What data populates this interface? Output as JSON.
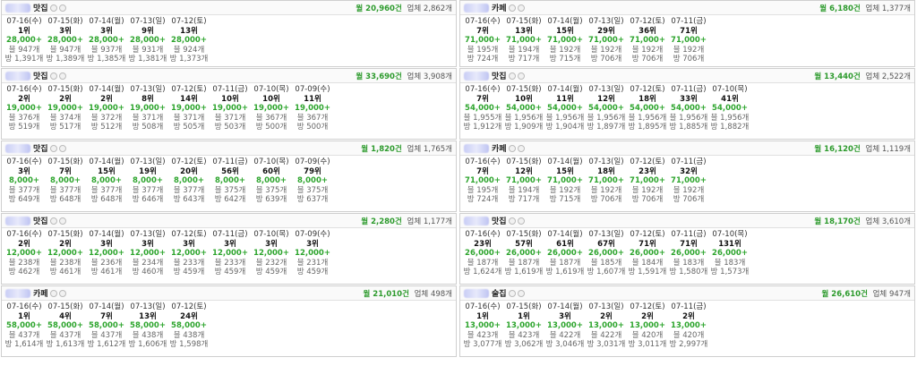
{
  "labels": {
    "monthly_suffix": "건",
    "industry_prefix": "업체",
    "count_suffix": "개"
  },
  "colors": {
    "traffic": "#2ea52e",
    "border": "#cfcfcf",
    "blur": "#c9cdf5"
  },
  "icons": [
    "blurred-store-name",
    "info-badge-icon"
  ],
  "left_cards": [
    {
      "category": "맛집",
      "monthly": "월 20,960건",
      "industry": "업체 2,862개",
      "days": [
        {
          "date": "07-16(수)",
          "rank": "1위",
          "traffic": "28,000+",
          "posts": "블 947개",
          "visits": "방 1,391개"
        },
        {
          "date": "07-15(화)",
          "rank": "3위",
          "traffic": "28,000+",
          "posts": "블 947개",
          "visits": "방 1,389개"
        },
        {
          "date": "07-14(월)",
          "rank": "3위",
          "traffic": "28,000+",
          "posts": "블 937개",
          "visits": "방 1,385개"
        },
        {
          "date": "07-13(일)",
          "rank": "9위",
          "traffic": "28,000+",
          "posts": "블 931개",
          "visits": "방 1,381개"
        },
        {
          "date": "07-12(토)",
          "rank": "13위",
          "traffic": "28,000+",
          "posts": "블 924개",
          "visits": "방 1,373개"
        }
      ]
    },
    {
      "category": "맛집",
      "monthly": "월 33,690건",
      "industry": "업체 3,908개",
      "days": [
        {
          "date": "07-16(수)",
          "rank": "2위",
          "traffic": "19,000+",
          "posts": "블 376개",
          "visits": "방 519개"
        },
        {
          "date": "07-15(화)",
          "rank": "2위",
          "traffic": "19,000+",
          "posts": "블 374개",
          "visits": "방 517개"
        },
        {
          "date": "07-14(월)",
          "rank": "2위",
          "traffic": "19,000+",
          "posts": "블 372개",
          "visits": "방 512개"
        },
        {
          "date": "07-13(일)",
          "rank": "8위",
          "traffic": "19,000+",
          "posts": "블 371개",
          "visits": "방 508개"
        },
        {
          "date": "07-12(토)",
          "rank": "14위",
          "traffic": "19,000+",
          "posts": "블 371개",
          "visits": "방 505개"
        },
        {
          "date": "07-11(금)",
          "rank": "10위",
          "traffic": "19,000+",
          "posts": "블 371개",
          "visits": "방 503개"
        },
        {
          "date": "07-10(목)",
          "rank": "10위",
          "traffic": "19,000+",
          "posts": "블 367개",
          "visits": "방 500개"
        },
        {
          "date": "07-09(수)",
          "rank": "11위",
          "traffic": "19,000+",
          "posts": "블 367개",
          "visits": "방 500개"
        }
      ]
    },
    {
      "category": "맛집",
      "monthly": "월 1,820건",
      "industry": "업체 1,765개",
      "days": [
        {
          "date": "07-16(수)",
          "rank": "3위",
          "traffic": "8,000+",
          "posts": "블 377개",
          "visits": "방 649개"
        },
        {
          "date": "07-15(화)",
          "rank": "7위",
          "traffic": "8,000+",
          "posts": "블 377개",
          "visits": "방 648개"
        },
        {
          "date": "07-14(월)",
          "rank": "15위",
          "traffic": "8,000+",
          "posts": "블 377개",
          "visits": "방 648개"
        },
        {
          "date": "07-13(일)",
          "rank": "19위",
          "traffic": "8,000+",
          "posts": "블 377개",
          "visits": "방 646개"
        },
        {
          "date": "07-12(토)",
          "rank": "20위",
          "traffic": "8,000+",
          "posts": "블 377개",
          "visits": "방 643개"
        },
        {
          "date": "07-11(금)",
          "rank": "56위",
          "traffic": "8,000+",
          "posts": "블 375개",
          "visits": "방 642개"
        },
        {
          "date": "07-10(목)",
          "rank": "60위",
          "traffic": "8,000+",
          "posts": "블 375개",
          "visits": "방 639개"
        },
        {
          "date": "07-09(수)",
          "rank": "79위",
          "traffic": "8,000+",
          "posts": "블 375개",
          "visits": "방 637개"
        }
      ]
    },
    {
      "category": "맛집",
      "monthly": "월 2,280건",
      "industry": "업체 1,177개",
      "days": [
        {
          "date": "07-16(수)",
          "rank": "2위",
          "traffic": "12,000+",
          "posts": "블 238개",
          "visits": "방 462개"
        },
        {
          "date": "07-15(화)",
          "rank": "2위",
          "traffic": "12,000+",
          "posts": "블 238개",
          "visits": "방 461개"
        },
        {
          "date": "07-14(월)",
          "rank": "3위",
          "traffic": "12,000+",
          "posts": "블 236개",
          "visits": "방 461개"
        },
        {
          "date": "07-13(일)",
          "rank": "3위",
          "traffic": "12,000+",
          "posts": "블 234개",
          "visits": "방 460개"
        },
        {
          "date": "07-12(토)",
          "rank": "3위",
          "traffic": "12,000+",
          "posts": "블 233개",
          "visits": "방 459개"
        },
        {
          "date": "07-11(금)",
          "rank": "3위",
          "traffic": "12,000+",
          "posts": "블 233개",
          "visits": "방 459개"
        },
        {
          "date": "07-10(목)",
          "rank": "3위",
          "traffic": "12,000+",
          "posts": "블 232개",
          "visits": "방 459개"
        },
        {
          "date": "07-09(수)",
          "rank": "3위",
          "traffic": "12,000+",
          "posts": "블 231개",
          "visits": "방 459개"
        }
      ]
    },
    {
      "category": "카페",
      "monthly": "월 21,010건",
      "industry": "업체 498개",
      "days": [
        {
          "date": "07-16(수)",
          "rank": "1위",
          "traffic": "58,000+",
          "posts": "블 437개",
          "visits": "방 1,614개"
        },
        {
          "date": "07-15(화)",
          "rank": "4위",
          "traffic": "58,000+",
          "posts": "블 437개",
          "visits": "방 1,613개"
        },
        {
          "date": "07-14(월)",
          "rank": "7위",
          "traffic": "58,000+",
          "posts": "블 437개",
          "visits": "방 1,612개"
        },
        {
          "date": "07-13(일)",
          "rank": "13위",
          "traffic": "58,000+",
          "posts": "블 438개",
          "visits": "방 1,606개"
        },
        {
          "date": "07-12(토)",
          "rank": "24위",
          "traffic": "58,000+",
          "posts": "블 438개",
          "visits": "방 1,598개"
        }
      ]
    }
  ],
  "right_cards": [
    {
      "category": "카페",
      "monthly": "월 6,180건",
      "industry": "업체 1,377개",
      "days": [
        {
          "date": "07-16(수)",
          "rank": "7위",
          "traffic": "71,000+",
          "posts": "블 195개",
          "visits": "방 724개"
        },
        {
          "date": "07-15(화)",
          "rank": "13위",
          "traffic": "71,000+",
          "posts": "블 194개",
          "visits": "방 717개"
        },
        {
          "date": "07-14(월)",
          "rank": "15위",
          "traffic": "71,000+",
          "posts": "블 192개",
          "visits": "방 715개"
        },
        {
          "date": "07-13(일)",
          "rank": "29위",
          "traffic": "71,000+",
          "posts": "블 192개",
          "visits": "방 706개"
        },
        {
          "date": "07-12(토)",
          "rank": "36위",
          "traffic": "71,000+",
          "posts": "블 192개",
          "visits": "방 706개"
        },
        {
          "date": "07-11(금)",
          "rank": "71위",
          "traffic": "71,000+",
          "posts": "블 192개",
          "visits": "방 706개"
        }
      ]
    },
    {
      "category": "맛집",
      "monthly": "월 13,440건",
      "industry": "업체 2,522개",
      "days": [
        {
          "date": "07-16(수)",
          "rank": "7위",
          "traffic": "54,000+",
          "posts": "블 1,955개",
          "visits": "방 1,912개"
        },
        {
          "date": "07-15(화)",
          "rank": "10위",
          "traffic": "54,000+",
          "posts": "블 1,956개",
          "visits": "방 1,909개"
        },
        {
          "date": "07-14(월)",
          "rank": "11위",
          "traffic": "54,000+",
          "posts": "블 1,956개",
          "visits": "방 1,904개"
        },
        {
          "date": "07-13(일)",
          "rank": "12위",
          "traffic": "54,000+",
          "posts": "블 1,956개",
          "visits": "방 1,897개"
        },
        {
          "date": "07-12(토)",
          "rank": "18위",
          "traffic": "54,000+",
          "posts": "블 1,956개",
          "visits": "방 1,895개"
        },
        {
          "date": "07-11(금)",
          "rank": "33위",
          "traffic": "54,000+",
          "posts": "블 1,956개",
          "visits": "방 1,885개"
        },
        {
          "date": "07-10(목)",
          "rank": "41위",
          "traffic": "54,000+",
          "posts": "블 1,956개",
          "visits": "방 1,882개"
        }
      ]
    },
    {
      "category": "카페",
      "monthly": "월 16,120건",
      "industry": "업체 1,119개",
      "days": [
        {
          "date": "07-16(수)",
          "rank": "7위",
          "traffic": "71,000+",
          "posts": "블 195개",
          "visits": "방 724개"
        },
        {
          "date": "07-15(화)",
          "rank": "12위",
          "traffic": "71,000+",
          "posts": "블 194개",
          "visits": "방 717개"
        },
        {
          "date": "07-14(월)",
          "rank": "15위",
          "traffic": "71,000+",
          "posts": "블 192개",
          "visits": "방 715개"
        },
        {
          "date": "07-13(일)",
          "rank": "18위",
          "traffic": "71,000+",
          "posts": "블 192개",
          "visits": "방 706개"
        },
        {
          "date": "07-12(토)",
          "rank": "23위",
          "traffic": "71,000+",
          "posts": "블 192개",
          "visits": "방 706개"
        },
        {
          "date": "07-11(금)",
          "rank": "32위",
          "traffic": "71,000+",
          "posts": "블 192개",
          "visits": "방 706개"
        }
      ]
    },
    {
      "category": "맛집",
      "monthly": "월 18,170건",
      "industry": "업체 3,610개",
      "days": [
        {
          "date": "07-16(수)",
          "rank": "23위",
          "traffic": "26,000+",
          "posts": "블 187개",
          "visits": "방 1,624개"
        },
        {
          "date": "07-15(화)",
          "rank": "57위",
          "traffic": "26,000+",
          "posts": "블 187개",
          "visits": "방 1,619개"
        },
        {
          "date": "07-14(월)",
          "rank": "61위",
          "traffic": "26,000+",
          "posts": "블 187개",
          "visits": "방 1,619개"
        },
        {
          "date": "07-13(일)",
          "rank": "67위",
          "traffic": "26,000+",
          "posts": "블 185개",
          "visits": "방 1,607개"
        },
        {
          "date": "07-12(토)",
          "rank": "71위",
          "traffic": "26,000+",
          "posts": "블 184개",
          "visits": "방 1,591개"
        },
        {
          "date": "07-11(금)",
          "rank": "71위",
          "traffic": "26,000+",
          "posts": "블 183개",
          "visits": "방 1,580개"
        },
        {
          "date": "07-10(목)",
          "rank": "131위",
          "traffic": "26,000+",
          "posts": "블 183개",
          "visits": "방 1,573개"
        }
      ]
    },
    {
      "category": "술집",
      "monthly": "월 26,610건",
      "industry": "업체 947개",
      "days": [
        {
          "date": "07-16(수)",
          "rank": "1위",
          "traffic": "13,000+",
          "posts": "블 423개",
          "visits": "방 3,077개"
        },
        {
          "date": "07-15(화)",
          "rank": "1위",
          "traffic": "13,000+",
          "posts": "블 423개",
          "visits": "방 3,062개"
        },
        {
          "date": "07-14(월)",
          "rank": "3위",
          "traffic": "13,000+",
          "posts": "블 422개",
          "visits": "방 3,046개"
        },
        {
          "date": "07-13(일)",
          "rank": "2위",
          "traffic": "13,000+",
          "posts": "블 422개",
          "visits": "방 3,031개"
        },
        {
          "date": "07-12(토)",
          "rank": "2위",
          "traffic": "13,000+",
          "posts": "블 420개",
          "visits": "방 3,011개"
        },
        {
          "date": "07-11(금)",
          "rank": "2위",
          "traffic": "13,000+",
          "posts": "블 420개",
          "visits": "방 2,997개"
        }
      ]
    }
  ]
}
